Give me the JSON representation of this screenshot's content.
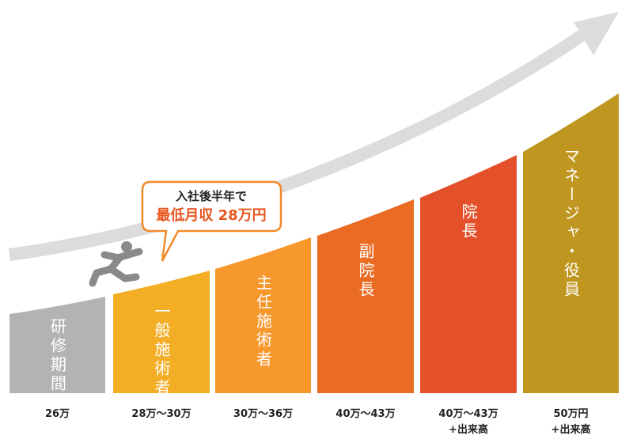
{
  "callout": {
    "line1": "入社後半年で",
    "line2": "最低月収 28万円"
  },
  "stages": [
    {
      "title": "研修期間",
      "salary": "26万"
    },
    {
      "title": "一般施術者",
      "salary": "28万～30万"
    },
    {
      "title": "主任施術者",
      "salary": "30万～36万"
    },
    {
      "title": "副院長",
      "salary": "40万～43万"
    },
    {
      "title": "院長",
      "salary": "40万～43万",
      "extra": "+出来高"
    },
    {
      "title": "マネージャ・役員",
      "salary": "50万円",
      "extra": "+出来高"
    }
  ]
}
